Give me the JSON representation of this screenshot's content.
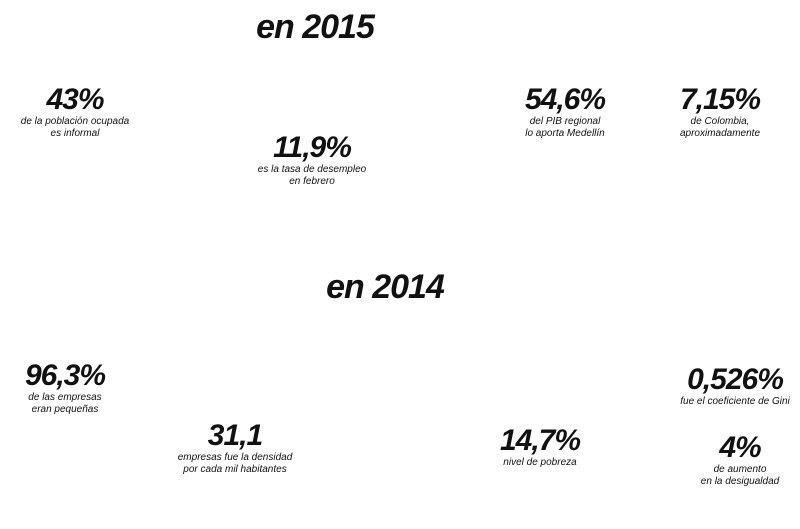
{
  "sections": [
    {
      "heading": "en 2015",
      "stats": [
        {
          "value": "43%",
          "lines": [
            "de la población ocupada",
            "es informal"
          ]
        },
        {
          "value": "11,9%",
          "lines": [
            "es la tasa de desempleo",
            "en febrero"
          ]
        },
        {
          "value": "54,6%",
          "lines": [
            "del PIB regional",
            "lo aporta Medellín"
          ]
        },
        {
          "value": "7,15%",
          "lines": [
            "de Colombia,",
            "aproximadamente"
          ]
        }
      ]
    },
    {
      "heading": "en 2014",
      "stats": [
        {
          "value": "96,3%",
          "lines": [
            "de las empresas",
            "eran pequeñas"
          ]
        },
        {
          "value": "31,1",
          "lines": [
            "empresas fue la densidad",
            "por cada mil habitantes"
          ]
        },
        {
          "value": "14,7%",
          "lines": [
            "nivel de pobreza"
          ]
        },
        {
          "value": "0,526%",
          "lines": [
            "fue el coeficiente de Gini"
          ]
        },
        {
          "value": "4%",
          "lines": [
            "de aumento",
            "en la desigualdad"
          ]
        }
      ]
    }
  ]
}
